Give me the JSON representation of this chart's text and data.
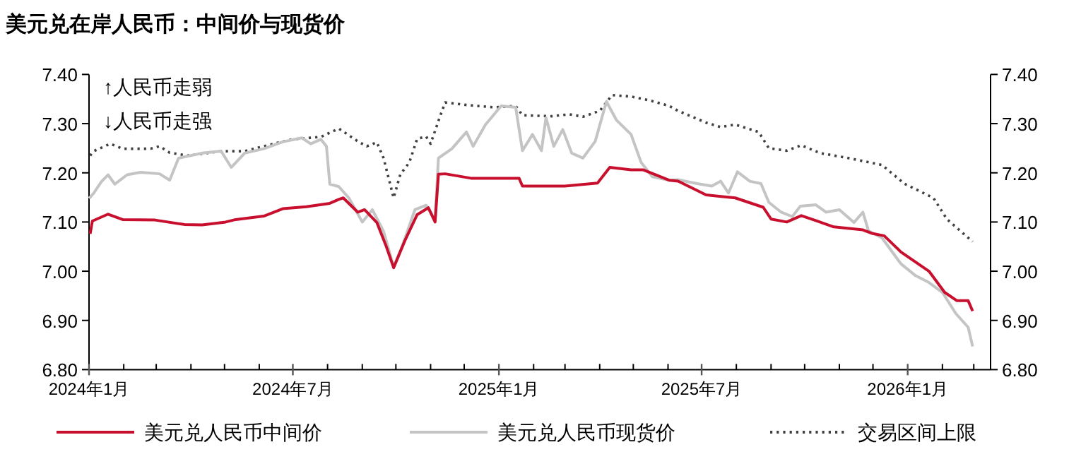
{
  "chart_data": {
    "type": "line",
    "title": "美元兑在岸人民币：中间价与现货价",
    "annotations": [
      "↑人民币走弱",
      "↓人民币走强"
    ],
    "xlim": [
      "2024-01-01",
      "2026-03-16"
    ],
    "xticks": [
      {
        "value": "2024-01-01",
        "label": "2024年1月"
      },
      {
        "value": "2024-02-01",
        "label": null
      },
      {
        "value": "2024-03-01",
        "label": null
      },
      {
        "value": "2024-04-01",
        "label": null
      },
      {
        "value": "2024-05-01",
        "label": null
      },
      {
        "value": "2024-06-01",
        "label": null
      },
      {
        "value": "2024-07-01",
        "label": "2024年7月"
      },
      {
        "value": "2024-08-01",
        "label": null
      },
      {
        "value": "2024-09-01",
        "label": null
      },
      {
        "value": "2024-10-01",
        "label": null
      },
      {
        "value": "2024-11-01",
        "label": null
      },
      {
        "value": "2024-12-01",
        "label": null
      },
      {
        "value": "2025-01-01",
        "label": "2025年1月"
      },
      {
        "value": "2025-02-01",
        "label": null
      },
      {
        "value": "2025-03-01",
        "label": null
      },
      {
        "value": "2025-04-01",
        "label": null
      },
      {
        "value": "2025-05-01",
        "label": null
      },
      {
        "value": "2025-06-01",
        "label": null
      },
      {
        "value": "2025-07-01",
        "label": "2025年7月"
      },
      {
        "value": "2025-08-01",
        "label": null
      },
      {
        "value": "2025-09-01",
        "label": null
      },
      {
        "value": "2025-10-01",
        "label": null
      },
      {
        "value": "2025-11-01",
        "label": null
      },
      {
        "value": "2025-12-01",
        "label": null
      },
      {
        "value": "2026-01-01",
        "label": "2026年1月"
      },
      {
        "value": "2026-02-01",
        "label": null
      },
      {
        "value": "2026-03-01",
        "label": null
      }
    ],
    "ylim": [
      6.8,
      7.4
    ],
    "yticks": [
      {
        "value": 6.8,
        "label": "6.80"
      },
      {
        "value": 6.9,
        "label": "6.90"
      },
      {
        "value": 7.0,
        "label": "7.00"
      },
      {
        "value": 7.1,
        "label": "7.10"
      },
      {
        "value": 7.2,
        "label": "7.20"
      },
      {
        "value": 7.3,
        "label": "7.30"
      },
      {
        "value": 7.4,
        "label": "7.40"
      }
    ],
    "y2lim": [
      6.8,
      7.4
    ],
    "y2ticks": [
      {
        "value": 6.8,
        "label": "6.80"
      },
      {
        "value": 6.9,
        "label": "6.90"
      },
      {
        "value": 7.0,
        "label": "7.00"
      },
      {
        "value": 7.1,
        "label": "7.10"
      },
      {
        "value": 7.2,
        "label": "7.20"
      },
      {
        "value": 7.3,
        "label": "7.30"
      },
      {
        "value": 7.4,
        "label": "7.40"
      }
    ],
    "legend": "bottom",
    "series": [
      {
        "name": "美元兑人民币中间价",
        "color": "#c8102e",
        "line_style": "solid",
        "x": [
          "2024-01-02",
          "2024-01-04",
          "2024-01-18",
          "2024-01-31",
          "2024-02-29",
          "2024-03-26",
          "2024-04-11",
          "2024-05-02",
          "2024-05-11",
          "2024-06-05",
          "2024-06-22",
          "2024-07-13",
          "2024-08-03",
          "2024-08-11",
          "2024-08-15",
          "2024-08-28",
          "2024-09-03",
          "2024-09-14",
          "2024-09-22",
          "2024-09-29",
          "2024-10-09",
          "2024-10-20",
          "2024-10-30",
          "2024-11-05",
          "2024-11-08",
          "2024-11-14",
          "2024-12-07",
          "2024-12-28",
          "2025-01-19",
          "2025-01-22",
          "2025-03-01",
          "2025-03-30",
          "2025-04-10",
          "2025-04-29",
          "2025-05-10",
          "2025-06-02",
          "2025-06-10",
          "2025-07-05",
          "2025-07-31",
          "2025-08-25",
          "2025-09-01",
          "2025-09-15",
          "2025-09-28",
          "2025-10-11",
          "2025-10-27",
          "2025-11-22",
          "2025-11-30",
          "2025-12-11",
          "2025-12-26",
          "2026-01-20",
          "2026-02-03",
          "2026-02-14",
          "2026-02-24",
          "2026-02-28"
        ],
        "values": [
          7.076,
          7.102,
          7.116,
          7.105,
          7.104,
          7.095,
          7.094,
          7.1,
          7.105,
          7.112,
          7.127,
          7.131,
          7.138,
          7.146,
          7.149,
          7.12,
          7.125,
          7.099,
          7.053,
          7.007,
          7.062,
          7.115,
          7.129,
          7.1,
          7.197,
          7.198,
          7.189,
          7.189,
          7.189,
          7.173,
          7.173,
          7.179,
          7.211,
          7.206,
          7.206,
          7.185,
          7.183,
          7.155,
          7.149,
          7.13,
          7.106,
          7.1,
          7.113,
          7.103,
          7.09,
          7.084,
          7.077,
          7.072,
          7.039,
          7.0,
          6.957,
          6.94,
          6.94,
          6.919
        ]
      },
      {
        "name": "美元兑人民币现货价",
        "color": "#c4c4c4",
        "line_style": "solid",
        "x": [
          "2024-01-01",
          "2024-01-05",
          "2024-01-12",
          "2024-01-18",
          "2024-01-24",
          "2024-02-04",
          "2024-02-16",
          "2024-03-04",
          "2024-03-13",
          "2024-03-21",
          "2024-04-11",
          "2024-04-28",
          "2024-05-07",
          "2024-05-19",
          "2024-06-05",
          "2024-06-22",
          "2024-07-09",
          "2024-07-17",
          "2024-07-26",
          "2024-07-31",
          "2024-08-03",
          "2024-08-11",
          "2024-08-20",
          "2024-09-01",
          "2024-09-10",
          "2024-09-20",
          "2024-09-29",
          "2024-10-07",
          "2024-10-18",
          "2024-10-28",
          "2024-11-05",
          "2024-11-08",
          "2024-11-20",
          "2024-12-03",
          "2024-12-09",
          "2024-12-20",
          "2025-01-03",
          "2025-01-16",
          "2025-01-22",
          "2025-01-31",
          "2025-02-08",
          "2025-02-12",
          "2025-02-19",
          "2025-02-27",
          "2025-03-07",
          "2025-03-17",
          "2025-03-28",
          "2025-04-07",
          "2025-04-16",
          "2025-04-29",
          "2025-05-08",
          "2025-05-18",
          "2025-06-02",
          "2025-06-10",
          "2025-06-27",
          "2025-07-10",
          "2025-07-18",
          "2025-07-25",
          "2025-08-02",
          "2025-08-13",
          "2025-08-23",
          "2025-08-30",
          "2025-09-10",
          "2025-09-20",
          "2025-09-27",
          "2025-10-11",
          "2025-10-20",
          "2025-11-01",
          "2025-11-14",
          "2025-11-22",
          "2025-11-27",
          "2025-12-09",
          "2025-12-26",
          "2026-01-08",
          "2026-01-20",
          "2026-02-01",
          "2026-02-13",
          "2026-02-24",
          "2026-02-28"
        ],
        "values": [
          7.148,
          7.158,
          7.182,
          7.196,
          7.177,
          7.196,
          7.201,
          7.198,
          7.185,
          7.23,
          7.24,
          7.244,
          7.211,
          7.24,
          7.249,
          7.263,
          7.271,
          7.259,
          7.268,
          7.254,
          7.177,
          7.172,
          7.149,
          7.1,
          7.125,
          7.081,
          7.009,
          7.053,
          7.125,
          7.134,
          7.105,
          7.23,
          7.249,
          7.283,
          7.254,
          7.298,
          7.336,
          7.333,
          7.245,
          7.278,
          7.245,
          7.312,
          7.254,
          7.288,
          7.24,
          7.23,
          7.264,
          7.345,
          7.307,
          7.278,
          7.221,
          7.192,
          7.185,
          7.186,
          7.178,
          7.173,
          7.183,
          7.159,
          7.202,
          7.183,
          7.178,
          7.14,
          7.12,
          7.111,
          7.132,
          7.135,
          7.12,
          7.125,
          7.099,
          7.12,
          7.082,
          7.068,
          7.015,
          6.991,
          6.977,
          6.957,
          6.914,
          6.886,
          6.847
        ]
      },
      {
        "name": "交易区间上限",
        "color": "#404040",
        "line_style": "dotted",
        "x": [
          "2024-01-02",
          "2024-01-05",
          "2024-01-20",
          "2024-01-31",
          "2024-02-25",
          "2024-03-04",
          "2024-03-13",
          "2024-03-29",
          "2024-04-28",
          "2024-05-19",
          "2024-06-05",
          "2024-06-30",
          "2024-07-26",
          "2024-08-11",
          "2024-08-28",
          "2024-09-05",
          "2024-09-14",
          "2024-09-20",
          "2024-09-29",
          "2024-10-05",
          "2024-10-13",
          "2024-10-20",
          "2024-10-28",
          "2024-11-01",
          "2024-11-09",
          "2024-11-14",
          "2024-12-03",
          "2024-12-28",
          "2025-01-16",
          "2025-01-22",
          "2025-02-17",
          "2025-03-05",
          "2025-03-17",
          "2025-04-01",
          "2025-04-12",
          "2025-04-29",
          "2025-05-16",
          "2025-06-02",
          "2025-06-10",
          "2025-07-05",
          "2025-07-18",
          "2025-07-31",
          "2025-08-21",
          "2025-08-30",
          "2025-09-15",
          "2025-09-28",
          "2025-10-15",
          "2025-11-09",
          "2025-12-09",
          "2025-12-29",
          "2026-01-15",
          "2026-01-24",
          "2026-02-05",
          "2026-02-17",
          "2026-02-28"
        ],
        "values": [
          7.235,
          7.244,
          7.259,
          7.249,
          7.249,
          7.254,
          7.241,
          7.235,
          7.244,
          7.244,
          7.254,
          7.268,
          7.273,
          7.29,
          7.264,
          7.254,
          7.262,
          7.23,
          7.149,
          7.197,
          7.221,
          7.269,
          7.274,
          7.259,
          7.312,
          7.343,
          7.338,
          7.333,
          7.336,
          7.317,
          7.315,
          7.319,
          7.314,
          7.326,
          7.358,
          7.355,
          7.347,
          7.336,
          7.326,
          7.302,
          7.293,
          7.298,
          7.283,
          7.25,
          7.245,
          7.256,
          7.24,
          7.23,
          7.216,
          7.178,
          7.159,
          7.149,
          7.106,
          7.082,
          7.06
        ]
      }
    ]
  }
}
